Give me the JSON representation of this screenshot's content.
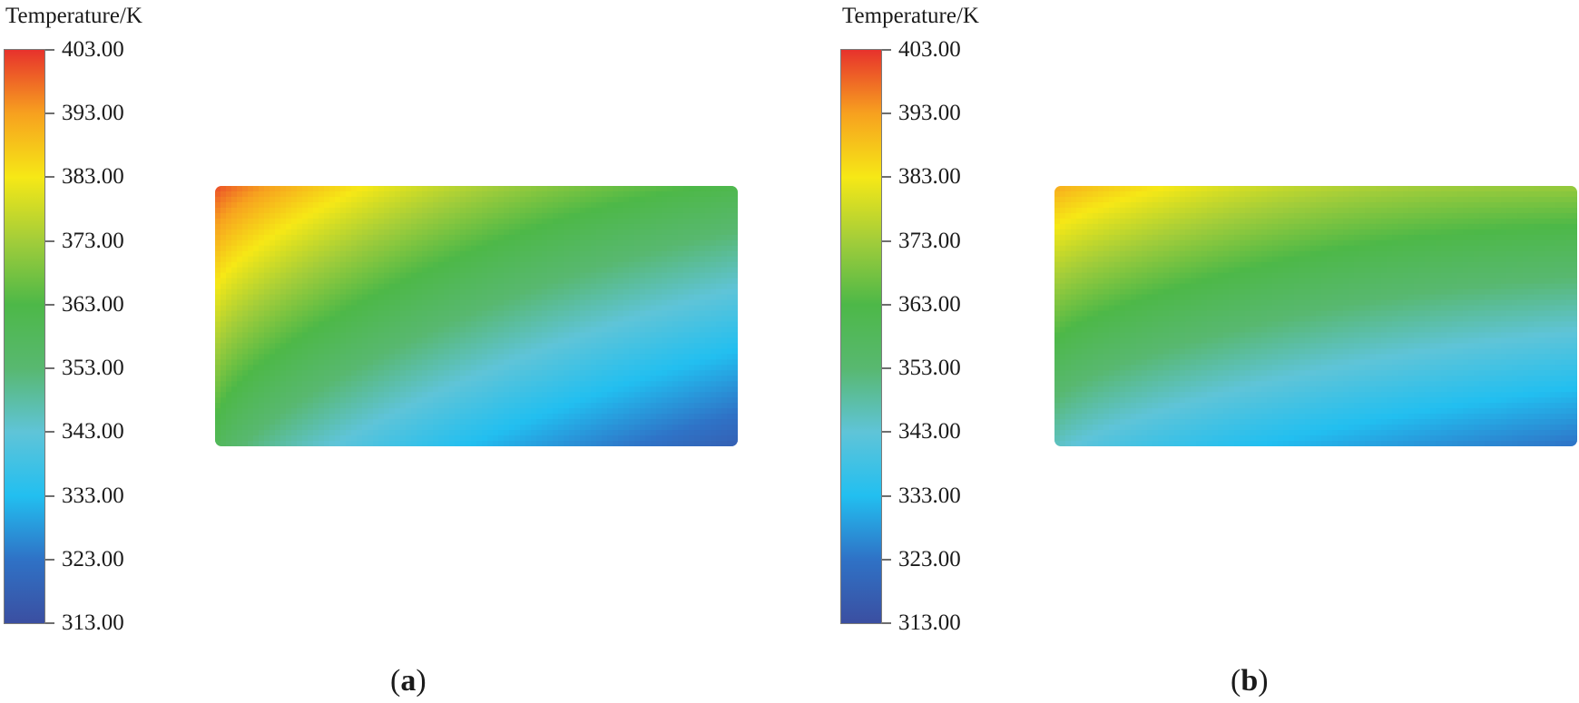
{
  "chart_data": [
    {
      "type": "heatmap",
      "caption_letter": "a",
      "legend_title": "Temperature/K",
      "colorbar": {
        "min": 313.0,
        "max": 403.0,
        "ticks": [
          "403.00",
          "393.00",
          "383.00",
          "373.00",
          "363.00",
          "353.00",
          "343.00",
          "333.00",
          "323.00",
          "313.00"
        ],
        "stops": [
          {
            "value": 313,
            "color": "#3b4fa1"
          },
          {
            "value": 323,
            "color": "#2f72c6"
          },
          {
            "value": 333,
            "color": "#22bff0"
          },
          {
            "value": 343,
            "color": "#5fc4d8"
          },
          {
            "value": 353,
            "color": "#58b870"
          },
          {
            "value": 363,
            "color": "#4db848"
          },
          {
            "value": 373,
            "color": "#a2cd3a"
          },
          {
            "value": 383,
            "color": "#f6e816"
          },
          {
            "value": 393,
            "color": "#f7a11f"
          },
          {
            "value": 403,
            "color": "#e7322c"
          }
        ]
      },
      "field": {
        "corner_temperatures": {
          "top_left": 401,
          "top_right": 362,
          "bottom_left": 360,
          "bottom_right": 318
        }
      }
    },
    {
      "type": "heatmap",
      "caption_letter": "b",
      "legend_title": "Temperature/K",
      "colorbar": {
        "min": 313.0,
        "max": 403.0,
        "ticks": [
          "403.00",
          "393.00",
          "383.00",
          "373.00",
          "363.00",
          "353.00",
          "343.00",
          "333.00",
          "323.00",
          "313.00"
        ],
        "stops": [
          {
            "value": 313,
            "color": "#3b4fa1"
          },
          {
            "value": 323,
            "color": "#2f72c6"
          },
          {
            "value": 333,
            "color": "#22bff0"
          },
          {
            "value": 343,
            "color": "#5fc4d8"
          },
          {
            "value": 353,
            "color": "#58b870"
          },
          {
            "value": 363,
            "color": "#4db848"
          },
          {
            "value": 373,
            "color": "#a2cd3a"
          },
          {
            "value": 383,
            "color": "#f6e816"
          },
          {
            "value": 393,
            "color": "#f7a11f"
          },
          {
            "value": 403,
            "color": "#e7322c"
          }
        ]
      },
      "field": {
        "corner_temperatures": {
          "top_left": 392,
          "top_right": 372,
          "bottom_left": 346,
          "bottom_right": 323
        }
      }
    }
  ]
}
